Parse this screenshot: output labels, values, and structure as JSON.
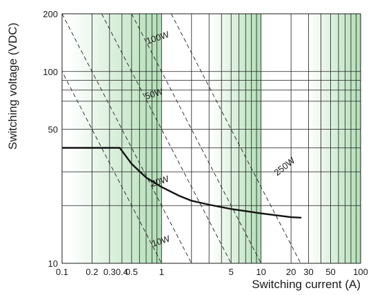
{
  "chart_data": {
    "type": "line",
    "x_scale": "log",
    "y_scale": "log",
    "xlim": [
      0.1,
      100
    ],
    "ylim": [
      10,
      200
    ],
    "xlabel": "Switching current (A)",
    "ylabel": "Switching voltage (VDC)",
    "x_ticks": [
      0.1,
      0.2,
      0.3,
      0.4,
      0.5,
      1,
      5,
      10,
      20,
      30,
      50,
      100
    ],
    "x_tick_labels": [
      "0.1",
      "0.2",
      "0.3",
      "0.4",
      "0.5",
      "1",
      "5",
      "10",
      "20",
      "30",
      "50",
      "100"
    ],
    "y_ticks": [
      10,
      50,
      100,
      200
    ],
    "y_tick_labels": [
      "10",
      "50",
      "100",
      "200"
    ],
    "x_gridlines": [
      0.2,
      0.3,
      0.4,
      0.5,
      0.6,
      0.7,
      0.8,
      0.9,
      1,
      2,
      3,
      4,
      5,
      6,
      7,
      8,
      9,
      10,
      20,
      30,
      40,
      50,
      60,
      70,
      80,
      90
    ],
    "y_gridlines": [
      20,
      30,
      40,
      50,
      70,
      80,
      90,
      100
    ],
    "shaded_bands": [
      [
        0.12,
        1
      ],
      [
        3.2,
        10
      ],
      [
        30,
        100
      ]
    ],
    "band_color": "#9fd6a4",
    "curve_color": "#111111",
    "series": [
      {
        "values": [
          {
            "x": 0.1,
            "y": 40
          },
          {
            "x": 0.38,
            "y": 40
          },
          {
            "x": 0.5,
            "y": 33
          },
          {
            "x": 0.7,
            "y": 28
          },
          {
            "x": 1,
            "y": 25
          },
          {
            "x": 1.5,
            "y": 22.5
          },
          {
            "x": 2,
            "y": 21.2
          },
          {
            "x": 3,
            "y": 20.2
          },
          {
            "x": 5,
            "y": 19.2
          },
          {
            "x": 10,
            "y": 18.2
          },
          {
            "x": 20,
            "y": 17.4
          },
          {
            "x": 25,
            "y": 17.3
          }
        ]
      }
    ],
    "power_lines": [
      {
        "label": "10W",
        "watts": 10
      },
      {
        "label": "20W",
        "watts": 20
      },
      {
        "label": "50W",
        "watts": 50
      },
      {
        "label": "100W",
        "watts": 100
      },
      {
        "label": "250W",
        "watts": 250
      }
    ]
  }
}
